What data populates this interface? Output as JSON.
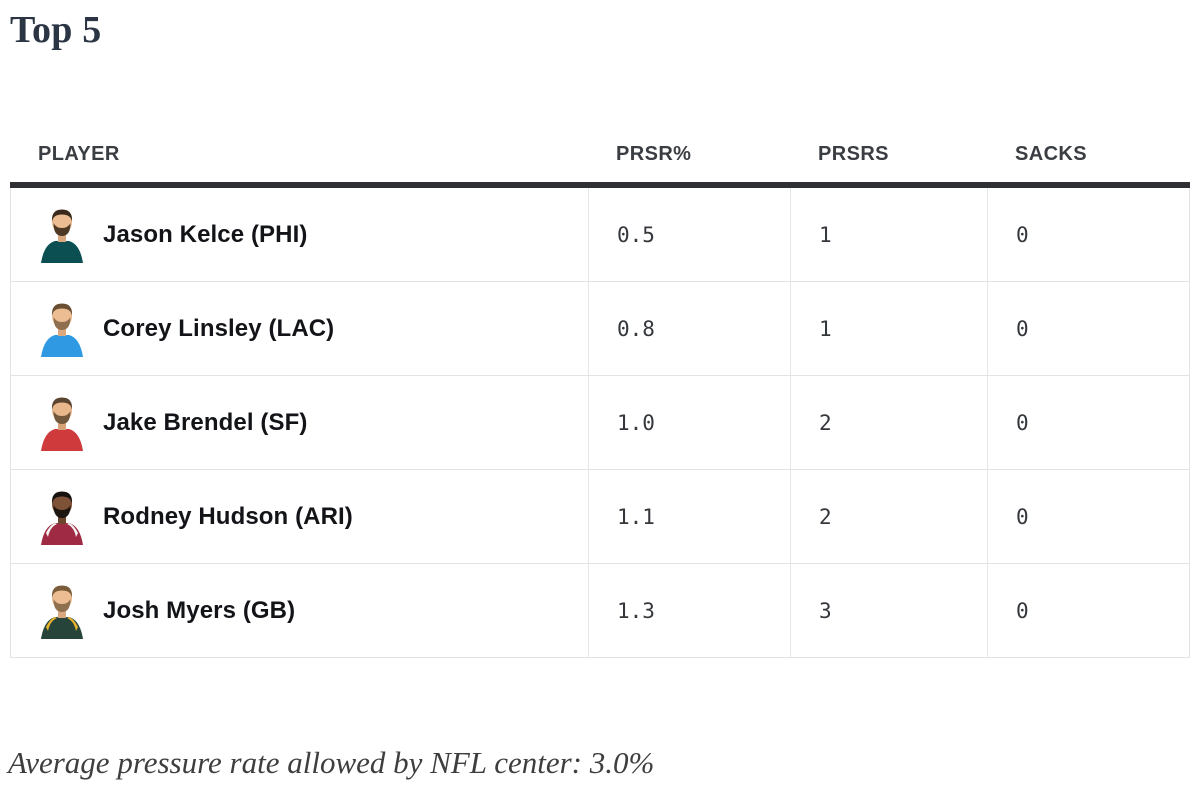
{
  "page": {
    "title": "Top 5"
  },
  "table": {
    "columns": [
      {
        "label": "PLAYER"
      },
      {
        "label": "PRSR%"
      },
      {
        "label": "PRSRS"
      },
      {
        "label": "SACKS"
      }
    ],
    "rows": [
      {
        "player": "Jason Kelce (PHI)",
        "prsr_pct": "0.5",
        "prsrs": "1",
        "sacks": "0",
        "avatar": {
          "jersey": "#0b4f52",
          "trim": "",
          "skin": "#ecbd93",
          "skin_shadow": "#d9a87e",
          "hair": "#3a2a1c",
          "beard": "#46321f"
        }
      },
      {
        "player": "Corey Linsley (LAC)",
        "prsr_pct": "0.8",
        "prsrs": "1",
        "sacks": "0",
        "avatar": {
          "jersey": "#2f9ae3",
          "trim": "",
          "skin": "#ecbd93",
          "skin_shadow": "#d9a87e",
          "hair": "#6b4f33",
          "beard": "#8a6b4a"
        }
      },
      {
        "player": "Jake Brendel (SF)",
        "prsr_pct": "1.0",
        "prsrs": "2",
        "sacks": "0",
        "avatar": {
          "jersey": "#cf3a3d",
          "trim": "",
          "skin": "#e9b78c",
          "skin_shadow": "#d6a276",
          "hair": "#5b4430",
          "beard": "#6d5238"
        }
      },
      {
        "player": "Rodney Hudson (ARI)",
        "prsr_pct": "1.1",
        "prsrs": "2",
        "sacks": "0",
        "avatar": {
          "jersey": "#9e2b43",
          "trim": "#f3f3f3",
          "skin": "#7d5236",
          "skin_shadow": "#6b452c",
          "hair": "#191310",
          "beard": "#191310"
        }
      },
      {
        "player": "Josh Myers (GB)",
        "prsr_pct": "1.3",
        "prsrs": "3",
        "sacks": "0",
        "avatar": {
          "jersey": "#26443a",
          "trim": "#e8b42e",
          "skin": "#ecbd93",
          "skin_shadow": "#d9a87e",
          "hair": "#7a5c3a",
          "beard": "#8a6b4a"
        }
      }
    ]
  },
  "footnote": {
    "text": "Average pressure rate allowed by NFL center: 3.0%"
  },
  "colors": {
    "header_rule": "#2f3033",
    "grid_line": "#e3e3e3",
    "title_text": "#2b3544",
    "header_text": "#3a3d42",
    "name_text": "#121418",
    "number_text": "#34373c",
    "footnote_text": "#3e3e3e"
  }
}
